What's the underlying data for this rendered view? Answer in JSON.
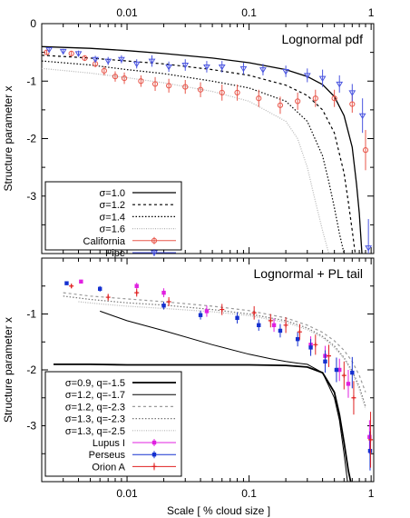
{
  "figure": {
    "shared_xlabel": "Scale [ % cloud size ]",
    "x_tick_labels": [
      "0.01",
      "0.1",
      "1"
    ]
  },
  "chart_data": [
    {
      "type": "line",
      "title": "Lognormal pdf",
      "xlabel": "Scale [ % cloud size ]",
      "ylabel": "Structure parameter x",
      "x_scale": "log",
      "xlim": [
        0.002,
        1.05
      ],
      "ylim": [
        0,
        -4
      ],
      "y_ticks": [
        0,
        -1,
        -2,
        -3
      ],
      "legend_position": "bottom-left",
      "grid": false,
      "series": [
        {
          "name": "σ=1.0",
          "kind": "curve",
          "style": "solid",
          "color": "#000000",
          "x": [
            0.002,
            0.005,
            0.01,
            0.02,
            0.05,
            0.1,
            0.2,
            0.3,
            0.4,
            0.5,
            0.6,
            0.7,
            0.76,
            0.8,
            0.84
          ],
          "y": [
            -0.4,
            -0.43,
            -0.47,
            -0.52,
            -0.6,
            -0.68,
            -0.8,
            -0.92,
            -1.06,
            -1.27,
            -1.6,
            -2.15,
            -2.8,
            -3.3,
            -4.0
          ]
        },
        {
          "name": "σ=1.2",
          "kind": "curve",
          "style": "dashed",
          "color": "#000000",
          "x": [
            0.002,
            0.005,
            0.01,
            0.02,
            0.05,
            0.1,
            0.2,
            0.3,
            0.4,
            0.5,
            0.6,
            0.65,
            0.7,
            0.74
          ],
          "y": [
            -0.55,
            -0.6,
            -0.65,
            -0.7,
            -0.8,
            -0.9,
            -1.07,
            -1.25,
            -1.5,
            -1.9,
            -2.6,
            -3.1,
            -3.6,
            -4.0
          ]
        },
        {
          "name": "σ=1.4",
          "kind": "curve",
          "style": "dotted",
          "color": "#000000",
          "x": [
            0.002,
            0.005,
            0.01,
            0.02,
            0.05,
            0.1,
            0.2,
            0.3,
            0.4,
            0.45,
            0.5,
            0.55,
            0.6
          ],
          "y": [
            -0.65,
            -0.72,
            -0.8,
            -0.87,
            -1.0,
            -1.12,
            -1.35,
            -1.7,
            -2.3,
            -2.75,
            -3.2,
            -3.65,
            -4.0
          ]
        },
        {
          "name": "σ=1.6",
          "kind": "curve",
          "style": "dotted-light",
          "color": "#b5b5b5",
          "x": [
            0.002,
            0.005,
            0.01,
            0.02,
            0.05,
            0.1,
            0.2,
            0.25,
            0.3,
            0.35,
            0.4,
            0.45
          ],
          "y": [
            -0.78,
            -0.86,
            -0.94,
            -1.03,
            -1.18,
            -1.35,
            -1.7,
            -2.0,
            -2.5,
            -3.1,
            -3.6,
            -4.0
          ]
        },
        {
          "name": "California",
          "kind": "points",
          "marker": "circle",
          "color": "#e8564a",
          "x": [
            0.0022,
            0.0035,
            0.0045,
            0.0055,
            0.0065,
            0.008,
            0.0095,
            0.013,
            0.017,
            0.022,
            0.03,
            0.04,
            0.06,
            0.08,
            0.12,
            0.18,
            0.25,
            0.35,
            0.5,
            0.7,
            0.9
          ],
          "y": [
            -0.5,
            -0.52,
            -0.6,
            -0.7,
            -0.82,
            -0.92,
            -0.95,
            -1.0,
            -1.05,
            -1.08,
            -1.1,
            -1.15,
            -1.2,
            -1.2,
            -1.3,
            -1.42,
            -1.35,
            -1.3,
            -1.3,
            -1.4,
            -2.2
          ],
          "err": [
            0.04,
            0.04,
            0.05,
            0.06,
            0.08,
            0.09,
            0.1,
            0.1,
            0.12,
            0.12,
            0.12,
            0.13,
            0.14,
            0.14,
            0.15,
            0.15,
            0.15,
            0.15,
            0.15,
            0.15,
            0.35
          ]
        },
        {
          "name": "Pipe",
          "kind": "points",
          "marker": "triangle-down",
          "color": "#4a55e0",
          "x": [
            0.0023,
            0.003,
            0.004,
            0.0055,
            0.007,
            0.009,
            0.012,
            0.016,
            0.022,
            0.03,
            0.045,
            0.06,
            0.09,
            0.13,
            0.2,
            0.3,
            0.4,
            0.55,
            0.7,
            0.85,
            0.95
          ],
          "y": [
            -0.45,
            -0.48,
            -0.52,
            -0.62,
            -0.65,
            -0.62,
            -0.7,
            -0.65,
            -0.75,
            -0.72,
            -0.75,
            -0.75,
            -0.78,
            -0.8,
            -0.83,
            -0.9,
            -0.95,
            -1.05,
            -1.2,
            -1.6,
            -3.9
          ],
          "err": [
            0.04,
            0.04,
            0.05,
            0.06,
            0.07,
            0.07,
            0.08,
            0.1,
            0.09,
            0.1,
            0.1,
            0.1,
            0.1,
            0.1,
            0.1,
            0.12,
            0.15,
            0.15,
            0.15,
            0.3,
            0.5
          ]
        }
      ]
    },
    {
      "type": "line",
      "title": "Lognormal + PL tail",
      "xlabel": "Scale [ % cloud size ]",
      "ylabel": "Structure parameter x",
      "x_scale": "log",
      "xlim": [
        0.002,
        1.05
      ],
      "ylim": [
        0,
        -4
      ],
      "y_ticks": [
        -1,
        -2,
        -3
      ],
      "legend_position": "bottom-left",
      "grid": false,
      "series": [
        {
          "name": "σ=0.9, q=-1.5",
          "kind": "curve",
          "style": "solid-thick",
          "color": "#000000",
          "x": [
            0.0025,
            0.005,
            0.01,
            0.02,
            0.05,
            0.1,
            0.2,
            0.3,
            0.4,
            0.5,
            0.55,
            0.6,
            0.65,
            0.68
          ],
          "y": [
            -1.9,
            -1.9,
            -1.91,
            -1.91,
            -1.91,
            -1.91,
            -1.92,
            -1.95,
            -2.05,
            -2.4,
            -2.8,
            -3.3,
            -3.8,
            -4.0
          ]
        },
        {
          "name": "σ=1.2, q=-1.7",
          "kind": "curve",
          "style": "solid-thin",
          "color": "#000000",
          "x": [
            0.006,
            0.01,
            0.02,
            0.05,
            0.1,
            0.15,
            0.2,
            0.25,
            0.3,
            0.4,
            0.5,
            0.55,
            0.6,
            0.64
          ],
          "y": [
            -0.95,
            -1.12,
            -1.3,
            -1.55,
            -1.72,
            -1.8,
            -1.85,
            -1.88,
            -1.9,
            -2.05,
            -2.5,
            -2.9,
            -3.5,
            -4.0
          ]
        },
        {
          "name": "σ=1.2, q=-2.3",
          "kind": "curve",
          "style": "dashed",
          "color": "#9a9a9a",
          "x": [
            0.003,
            0.005,
            0.01,
            0.02,
            0.05,
            0.1,
            0.2,
            0.3,
            0.4,
            0.5,
            0.6,
            0.7,
            0.8,
            0.9
          ],
          "y": [
            -0.62,
            -0.68,
            -0.73,
            -0.78,
            -0.86,
            -0.94,
            -1.07,
            -1.2,
            -1.33,
            -1.48,
            -1.65,
            -1.85,
            -2.1,
            -2.4
          ]
        },
        {
          "name": "σ=1.3, q=-2.3",
          "kind": "curve",
          "style": "dotted",
          "color": "#777777",
          "x": [
            0.003,
            0.005,
            0.01,
            0.02,
            0.05,
            0.1,
            0.2,
            0.3,
            0.4,
            0.5,
            0.6,
            0.7,
            0.8,
            0.9
          ],
          "y": [
            -0.68,
            -0.74,
            -0.8,
            -0.84,
            -0.92,
            -1.0,
            -1.12,
            -1.25,
            -1.4,
            -1.57,
            -1.78,
            -2.02,
            -2.3,
            -2.65
          ]
        },
        {
          "name": "σ=1.3, q=-2.5",
          "kind": "curve",
          "style": "dotted-light",
          "color": "#b5b5b5",
          "x": [
            0.004,
            0.006,
            0.01,
            0.02,
            0.05,
            0.1,
            0.2,
            0.3,
            0.4,
            0.5,
            0.6,
            0.7,
            0.8,
            0.9
          ],
          "y": [
            -0.78,
            -0.82,
            -0.86,
            -0.9,
            -0.96,
            -1.03,
            -1.15,
            -1.28,
            -1.42,
            -1.6,
            -1.8,
            -2.05,
            -2.35,
            -2.7
          ]
        },
        {
          "name": "Lupus I",
          "kind": "points",
          "marker": "filled-square",
          "color": "#e020e0",
          "x": [
            0.0042,
            0.012,
            0.02,
            0.045,
            0.16,
            0.32,
            0.42,
            0.55,
            0.65,
            0.97
          ],
          "y": [
            -0.42,
            -0.5,
            -0.62,
            -0.95,
            -1.2,
            -1.55,
            -1.75,
            -2.0,
            -2.25,
            -3.2
          ],
          "err": [
            0.03,
            0.06,
            0.08,
            0.1,
            0.12,
            0.15,
            0.18,
            0.2,
            0.25,
            0.3
          ]
        },
        {
          "name": "Perseus",
          "kind": "points",
          "marker": "filled-square",
          "color": "#1530d0",
          "x": [
            0.0032,
            0.006,
            0.02,
            0.04,
            0.08,
            0.12,
            0.18,
            0.25,
            0.32,
            0.42,
            0.52,
            0.7,
            0.98
          ],
          "y": [
            -0.45,
            -0.55,
            -0.85,
            -1.02,
            -1.07,
            -1.2,
            -1.3,
            -1.45,
            -1.6,
            -1.85,
            -2.0,
            -2.05,
            -3.45
          ],
          "err": [
            0.03,
            0.05,
            0.07,
            0.08,
            0.1,
            0.1,
            0.12,
            0.13,
            0.15,
            0.2,
            0.22,
            0.28,
            0.35
          ]
        },
        {
          "name": "Orion A",
          "kind": "points",
          "marker": "plus",
          "color": "#e02020",
          "x": [
            0.0035,
            0.007,
            0.012,
            0.022,
            0.06,
            0.11,
            0.15,
            0.2,
            0.26,
            0.35,
            0.45,
            0.6,
            0.72,
            0.99
          ],
          "y": [
            -0.5,
            -0.7,
            -0.62,
            -0.78,
            -0.92,
            -0.98,
            -1.12,
            -1.2,
            -1.32,
            -1.55,
            -1.75,
            -2.1,
            -2.5,
            -3.25
          ],
          "err": [
            0.04,
            0.06,
            0.07,
            0.08,
            0.1,
            0.12,
            0.12,
            0.14,
            0.14,
            0.18,
            0.2,
            0.25,
            0.3,
            0.5
          ]
        }
      ]
    }
  ]
}
